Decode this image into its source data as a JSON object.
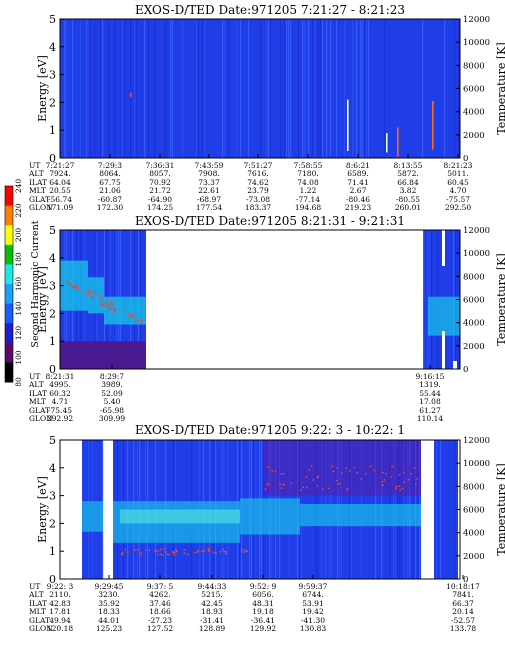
{
  "colorbar": {
    "label": "Second Harmonic Current",
    "ticks": [
      "80",
      "100",
      "120",
      "140",
      "160",
      "180",
      "200",
      "220",
      "240"
    ],
    "colors": [
      "#000000",
      "#5a0a6e",
      "#2020c8",
      "#1a5aff",
      "#1aa0ff",
      "#1ae8e8",
      "#00c000",
      "#ffff00",
      "#ff8000",
      "#ff0000"
    ]
  },
  "panel_title_prefix": "EXOS-D/TED",
  "row_labels": [
    "UT",
    "ALT",
    "ILAT",
    "MLT",
    "GLAT",
    "GLON"
  ],
  "chart_data": [
    {
      "type": "heatmap",
      "title": "EXOS-D/TED   Date:971205  7:21:27 - 8:21:23",
      "ylabel": "Energy [eV]",
      "y2label": "Temperature [K]",
      "ylim": [
        0,
        5
      ],
      "y2lim": [
        0,
        12000
      ],
      "yticks": [
        "0",
        "1",
        "2",
        "3",
        "4",
        "5"
      ],
      "y2ticks": [
        "0",
        "2000",
        "4000",
        "6000",
        "8000",
        "10000",
        "12000"
      ],
      "columns": [
        {
          "UT": "7:21:27",
          "ALT": "7924.",
          "ILAT": "64.04",
          "MLT": "20.55",
          "GLAT": "-56.74",
          "GLON": "171.09"
        },
        {
          "UT": "7:29:3",
          "ALT": "8064.",
          "ILAT": "67.75",
          "MLT": "21.06",
          "GLAT": "-60.87",
          "GLON": "172.30"
        },
        {
          "UT": "7:36:31",
          "ALT": "8057.",
          "ILAT": "70.92",
          "MLT": "21.72",
          "GLAT": "-64.90",
          "GLON": "174.25"
        },
        {
          "UT": "7:43:59",
          "ALT": "7908.",
          "ILAT": "73.37",
          "MLT": "22.61",
          "GLAT": "-68.97",
          "GLON": "177.54"
        },
        {
          "UT": "7:51:27",
          "ALT": "7616.",
          "ILAT": "74.62",
          "MLT": "23.79",
          "GLAT": "-73.08",
          "GLON": "183.37"
        },
        {
          "UT": "7:58:55",
          "ALT": "7180.",
          "ILAT": "74.08",
          "MLT": "1.22",
          "GLAT": "-77.14",
          "GLON": "194.68"
        },
        {
          "UT": "8:6:21",
          "ALT": "6589.",
          "ILAT": "71.41",
          "MLT": "2.67",
          "GLAT": "-80.46",
          "GLON": "219.23"
        },
        {
          "UT": "8:13:55",
          "ALT": "5872.",
          "ILAT": "66.84",
          "MLT": "3.82",
          "GLAT": "-80.55",
          "GLON": "260.01"
        },
        {
          "UT": "8:21:23",
          "ALT": "5011.",
          "ILAT": "60.45",
          "MLT": "4.70",
          "GLAT": "-75.57",
          "GLON": "292.50"
        }
      ]
    },
    {
      "type": "heatmap",
      "title": "EXOS-D/TED   Date:971205  8:21:31 - 9:21:31",
      "ylabel": "Energy [eV]",
      "y2label": "Temperature [K]",
      "ylim": [
        0,
        5
      ],
      "y2lim": [
        0,
        12000
      ],
      "yticks": [
        "0",
        "1",
        "2",
        "3",
        "4",
        "5"
      ],
      "y2ticks": [
        "0",
        "2000",
        "4000",
        "6000",
        "8000",
        "10000",
        "12000"
      ],
      "columns": [
        {
          "UT": "8:21:31",
          "ALT": "4995.",
          "ILAT": "60.32",
          "MLT": "4.71",
          "GLAT": "-75.45",
          "GLON": "292.92"
        },
        {
          "UT": "8:29:7",
          "ALT": "3989.",
          "ILAT": "52.09",
          "MLT": "5.40",
          "GLAT": "-65.98",
          "GLON": "309.99"
        },
        {
          "UT": "9:16:15",
          "ALT": "1319.",
          "ILAT": "55.44",
          "MLT": "17.08",
          "GLAT": "61.27",
          "GLON": "110.14"
        }
      ]
    },
    {
      "type": "heatmap",
      "title": "EXOS-D/TED   Date:971205  9:22: 3 - 10:22: 1",
      "ylabel": "Energy [eV]",
      "y2label": "Temperature [K]",
      "ylim": [
        0,
        5
      ],
      "y2lim": [
        0,
        12000
      ],
      "yticks": [
        "0",
        "1",
        "2",
        "3",
        "4",
        "5"
      ],
      "y2ticks": [
        "0",
        "2000",
        "4000",
        "6000",
        "8000",
        "10000",
        "12000"
      ],
      "columns": [
        {
          "UT": "9:22: 3",
          "ALT": "2110.",
          "ILAT": "42.83",
          "MLT": "17.81",
          "GLAT": "49.94",
          "GLON": "120.18"
        },
        {
          "UT": "9:29:45",
          "ALT": "3230.",
          "ILAT": "35.92",
          "MLT": "18.33",
          "GLAT": "44.01",
          "GLON": "125.23"
        },
        {
          "UT": "9:37: 5",
          "ALT": "4262.",
          "ILAT": "37.46",
          "MLT": "18.66",
          "GLAT": "-27.23",
          "GLON": "127.52"
        },
        {
          "UT": "9:44:33",
          "ALT": "5215.",
          "ILAT": "42.45",
          "MLT": "18.93",
          "GLAT": "-31.41",
          "GLON": "128.89"
        },
        {
          "UT": "9:52: 9",
          "ALT": "6056.",
          "ILAT": "48.31",
          "MLT": "19.18",
          "GLAT": "-36.41",
          "GLON": "129.92"
        },
        {
          "UT": "9:59:37",
          "ALT": "6744.",
          "ILAT": "53.91",
          "MLT": "19.42",
          "GLAT": "-41.30",
          "GLON": "130.83"
        },
        {
          "UT": "10:18:17",
          "ALT": "7841.",
          "ILAT": "66.37",
          "MLT": "20.14",
          "GLAT": "-52.57",
          "GLON": "133.78"
        }
      ]
    }
  ]
}
